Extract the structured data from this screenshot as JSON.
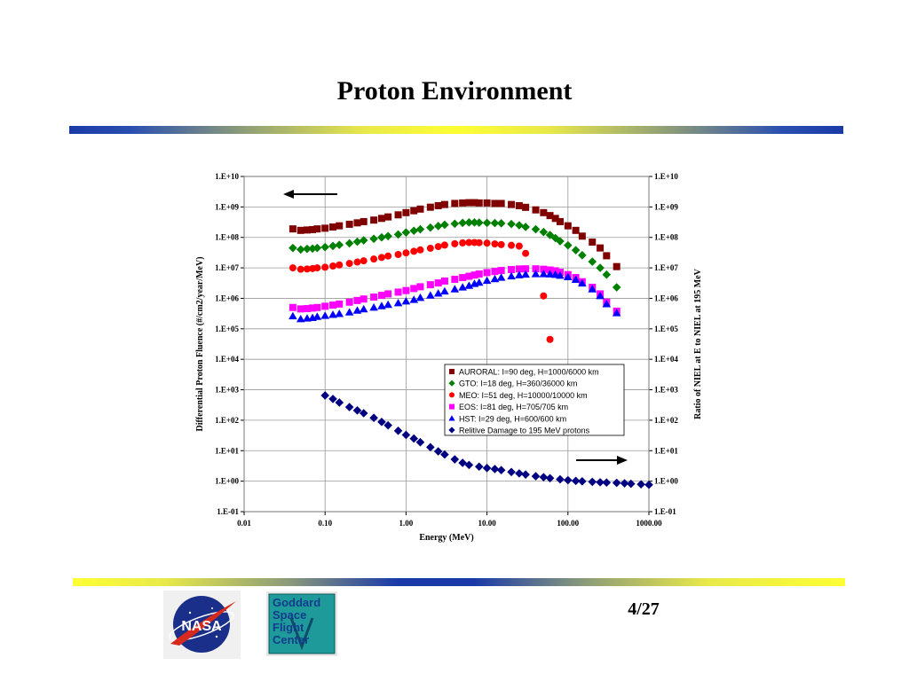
{
  "slide": {
    "title": "Proton Environment",
    "page": "4/27",
    "logos": {
      "nasa_text": "NASA",
      "gsfc_lines": [
        "Goddard",
        "Space",
        "Flight",
        "Center"
      ]
    },
    "colors": {
      "bar_blue": "#1a3aa8",
      "bar_yellow": "#ffff33",
      "gsfc_teal": "#1f9a9a"
    }
  },
  "chart_data": {
    "type": "scatter",
    "xlabel": "Energy (MeV)",
    "ylabel_left": "Differential Proton Fluence (#/cm2/year/MeV)",
    "ylabel_right": "Ratio of NIEL at E to NIEL at 195 MeV",
    "xscale": "log",
    "yscale": "log",
    "xlim": [
      0.01,
      1000
    ],
    "ylim": [
      0.1,
      10000000000.0
    ],
    "x_ticks": [
      "0.01",
      "0.10",
      "1.00",
      "10.00",
      "100.00",
      "1000.00"
    ],
    "y_ticks": [
      "1.E-01",
      "1.E+00",
      "1.E+01",
      "1.E+02",
      "1.E+03",
      "1.E+04",
      "1.E+05",
      "1.E+06",
      "1.E+07",
      "1.E+08",
      "1.E+09",
      "1.E+10"
    ],
    "grid": true,
    "legend_position": "lower-right",
    "annotations": [
      "left arrow (left axis)",
      "right arrow (right axis)"
    ],
    "series": [
      {
        "name": "AURORAL: I=90 deg, H=1000/6000 km",
        "marker": "square",
        "color": "#800000",
        "axis": "left",
        "x": [
          0.04,
          0.05,
          0.06,
          0.07,
          0.08,
          0.1,
          0.125,
          0.15,
          0.2,
          0.25,
          0.3,
          0.4,
          0.5,
          0.6,
          0.8,
          1,
          1.25,
          1.5,
          2,
          2.5,
          3,
          4,
          5,
          6,
          7,
          8,
          10,
          12.5,
          15,
          20,
          25,
          30,
          40,
          50,
          60,
          70,
          80,
          100,
          125,
          150,
          200,
          250,
          300,
          400
        ],
        "y": [
          190000000.0,
          170000000.0,
          175000000.0,
          180000000.0,
          190000000.0,
          200000000.0,
          220000000.0,
          240000000.0,
          270000000.0,
          300000000.0,
          330000000.0,
          370000000.0,
          420000000.0,
          470000000.0,
          550000000.0,
          650000000.0,
          750000000.0,
          850000000.0,
          980000000.0,
          1100000000.0,
          1200000000.0,
          1300000000.0,
          1350000000.0,
          1380000000.0,
          1380000000.0,
          1350000000.0,
          1350000000.0,
          1300000000.0,
          1300000000.0,
          1200000000.0,
          1100000000.0,
          970000000.0,
          800000000.0,
          650000000.0,
          520000000.0,
          420000000.0,
          330000000.0,
          240000000.0,
          170000000.0,
          110000000.0,
          70000000.0,
          45000000.0,
          25000000.0,
          11000000.0
        ]
      },
      {
        "name": "GTO:  I=18 deg, H=360/36000 km",
        "marker": "diamond",
        "color": "#008000",
        "axis": "left",
        "x": [
          0.04,
          0.05,
          0.06,
          0.07,
          0.08,
          0.1,
          0.125,
          0.15,
          0.2,
          0.25,
          0.3,
          0.4,
          0.5,
          0.6,
          0.8,
          1,
          1.25,
          1.5,
          2,
          2.5,
          3,
          4,
          5,
          6,
          7,
          8,
          10,
          12.5,
          15,
          20,
          25,
          30,
          40,
          50,
          60,
          70,
          80,
          100,
          125,
          150,
          200,
          250,
          300,
          400
        ],
        "y": [
          45000000.0,
          40000000.0,
          42000000.0,
          43000000.0,
          45000000.0,
          48000000.0,
          52000000.0,
          57000000.0,
          64000000.0,
          72000000.0,
          80000000.0,
          90000000.0,
          100000000.0,
          110000000.0,
          125000000.0,
          145000000.0,
          165000000.0,
          185000000.0,
          210000000.0,
          235000000.0,
          260000000.0,
          280000000.0,
          300000000.0,
          310000000.0,
          310000000.0,
          305000000.0,
          300000000.0,
          295000000.0,
          290000000.0,
          275000000.0,
          250000000.0,
          220000000.0,
          185000000.0,
          150000000.0,
          120000000.0,
          95000000.0,
          75000000.0,
          55000000.0,
          38000000.0,
          26000000.0,
          16000000.0,
          10000000.0,
          6000000.0,
          2300000.0
        ]
      },
      {
        "name": "MEO: I=51 deg, H=10000/10000 km",
        "marker": "circle",
        "color": "#ff0000",
        "axis": "left",
        "x": [
          0.04,
          0.05,
          0.06,
          0.07,
          0.08,
          0.1,
          0.125,
          0.15,
          0.2,
          0.25,
          0.3,
          0.4,
          0.5,
          0.6,
          0.8,
          1,
          1.25,
          1.5,
          2,
          2.5,
          3,
          4,
          5,
          6,
          7,
          8,
          10,
          12.5,
          15,
          20,
          25,
          30,
          50,
          60
        ],
        "y": [
          10000000.0,
          9000000.0,
          9200000.0,
          9500000.0,
          10000000.0,
          10500000.0,
          11500000.0,
          12500000.0,
          14000000.0,
          15500000.0,
          17000000.0,
          19500000.0,
          22000000.0,
          24500000.0,
          27500000.0,
          31000000.0,
          35000000.0,
          39000000.0,
          44000000.0,
          50000000.0,
          56000000.0,
          62000000.0,
          66000000.0,
          68000000.0,
          68000000.0,
          67000000.0,
          65000000.0,
          61000000.0,
          58000000.0,
          55000000.0,
          52000000.0,
          30000000.0,
          1200000.0,
          45000.0
        ]
      },
      {
        "name": "EOS: I=81 deg, H=705/705 km",
        "marker": "square",
        "color": "#ff00ff",
        "axis": "left",
        "x": [
          0.04,
          0.05,
          0.06,
          0.07,
          0.08,
          0.1,
          0.125,
          0.15,
          0.2,
          0.25,
          0.3,
          0.4,
          0.5,
          0.6,
          0.8,
          1,
          1.25,
          1.5,
          2,
          2.5,
          3,
          4,
          5,
          6,
          7,
          8,
          10,
          12.5,
          15,
          20,
          25,
          30,
          40,
          50,
          60,
          70,
          80,
          100,
          125,
          150,
          200,
          250,
          300,
          400
        ],
        "y": [
          500000.0,
          450000.0,
          460000.0,
          480000.0,
          500000.0,
          550000.0,
          600000.0,
          650000.0,
          750000.0,
          850000.0,
          950000.0,
          1100000.0,
          1250000.0,
          1400000.0,
          1600000.0,
          1800000.0,
          2100000.0,
          2400000.0,
          2800000.0,
          3200000.0,
          3700000.0,
          4200000.0,
          4800000.0,
          5300000.0,
          5800000.0,
          6300000.0,
          7000000.0,
          7600000.0,
          8200000.0,
          8800000.0,
          9200000.0,
          9300000.0,
          9300000.0,
          9000000.0,
          8500000.0,
          8000000.0,
          7200000.0,
          6000000.0,
          4800000.0,
          3500000.0,
          2300000.0,
          1400000.0,
          750000.0,
          380000.0
        ]
      },
      {
        "name": "HST: I=29 deg, H=600/600 km",
        "marker": "triangle",
        "color": "#0000ff",
        "axis": "left",
        "x": [
          0.04,
          0.05,
          0.06,
          0.07,
          0.08,
          0.1,
          0.125,
          0.15,
          0.2,
          0.25,
          0.3,
          0.4,
          0.5,
          0.6,
          0.8,
          1,
          1.25,
          1.5,
          2,
          2.5,
          3,
          4,
          5,
          6,
          7,
          8,
          10,
          12.5,
          15,
          20,
          25,
          30,
          40,
          50,
          60,
          70,
          80,
          100,
          125,
          150,
          200,
          250,
          300,
          400
        ],
        "y": [
          260000.0,
          210000.0,
          220000.0,
          230000.0,
          250000.0,
          270000.0,
          290000.0,
          310000.0,
          350000.0,
          400000.0,
          440000.0,
          500000.0,
          560000.0,
          620000.0,
          700000.0,
          800000.0,
          900000.0,
          1050000.0,
          1250000.0,
          1450000.0,
          1700000.0,
          2000000.0,
          2300000.0,
          2600000.0,
          3000000.0,
          3300000.0,
          3800000.0,
          4300000.0,
          4800000.0,
          5300000.0,
          5800000.0,
          6100000.0,
          6300000.0,
          6300000.0,
          6200000.0,
          6000000.0,
          5600000.0,
          5000000.0,
          4100000.0,
          3100000.0,
          2000000.0,
          1200000.0,
          650000.0,
          330000.0
        ]
      },
      {
        "name": "Relitive Damage to 195 MeV protons",
        "marker": "diamond",
        "color": "#000080",
        "axis": "right",
        "x": [
          0.1,
          0.125,
          0.15,
          0.2,
          0.25,
          0.3,
          0.4,
          0.5,
          0.6,
          0.8,
          1,
          1.25,
          1.5,
          2,
          2.5,
          3,
          4,
          5,
          6,
          8,
          10,
          12.5,
          15,
          20,
          25,
          30,
          40,
          50,
          60,
          80,
          100,
          125,
          150,
          200,
          250,
          300,
          400,
          500,
          600,
          800,
          1000
        ],
        "y": [
          650,
          500,
          380,
          270,
          210,
          170,
          120,
          88,
          68,
          45,
          33,
          25,
          19,
          13,
          9.5,
          7.5,
          5.2,
          4,
          3.4,
          3,
          2.7,
          2.5,
          2.3,
          2,
          1.8,
          1.65,
          1.45,
          1.35,
          1.25,
          1.15,
          1.08,
          1.02,
          0.99,
          0.95,
          0.92,
          0.9,
          0.88,
          0.85,
          0.82,
          0.79,
          0.76
        ]
      }
    ]
  }
}
